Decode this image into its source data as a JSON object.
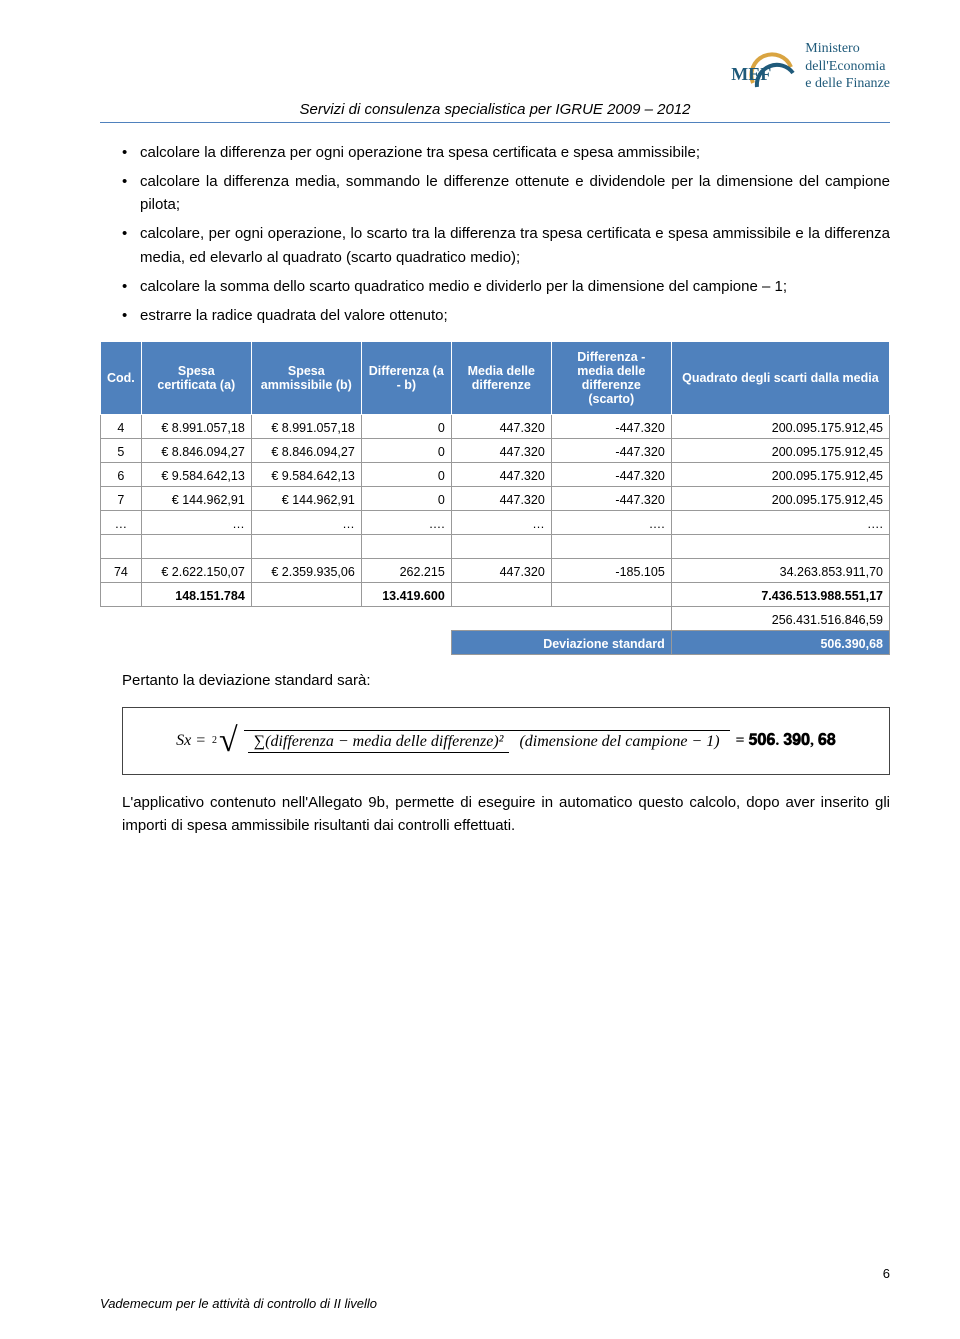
{
  "header": {
    "mef": "MEF",
    "ministry_line1": "Ministero",
    "ministry_line2": "dell'Economia",
    "ministry_line3": "e delle Finanze",
    "doc_title": "Servizi di consulenza specialistica per IGRUE 2009 – 2012"
  },
  "bullets": [
    "calcolare la differenza per ogni operazione tra spesa certificata e spesa ammissibile;",
    "calcolare la differenza media, sommando le differenze ottenute e dividendole per la dimensione del campione pilota;",
    "calcolare, per ogni operazione, lo scarto tra la differenza tra spesa certificata e spesa ammissibile e la differenza media, ed elevarlo al quadrato (scarto quadratico medio);",
    "calcolare la somma dello scarto quadratico medio e dividerlo per la dimensione del campione – 1;",
    "estrarre la radice quadrata del valore ottenuto;"
  ],
  "table": {
    "headers": [
      "Cod.",
      "Spesa certificata (a)",
      "Spesa ammissibile (b)",
      "Differenza (a - b)",
      "Media delle differenze",
      "Differenza - media delle differenze (scarto)",
      "Quadrato degli scarti dalla media"
    ],
    "rows": [
      {
        "cod": "4",
        "a": "€ 8.991.057,18",
        "b": "€ 8.991.057,18",
        "diff": "0",
        "media": "447.320",
        "scarto": "-447.320",
        "quad": "200.095.175.912,45"
      },
      {
        "cod": "5",
        "a": "€ 8.846.094,27",
        "b": "€ 8.846.094,27",
        "diff": "0",
        "media": "447.320",
        "scarto": "-447.320",
        "quad": "200.095.175.912,45"
      },
      {
        "cod": "6",
        "a": "€ 9.584.642,13",
        "b": "€ 9.584.642,13",
        "diff": "0",
        "media": "447.320",
        "scarto": "-447.320",
        "quad": "200.095.175.912,45"
      },
      {
        "cod": "7",
        "a": "€ 144.962,91",
        "b": "€ 144.962,91",
        "diff": "0",
        "media": "447.320",
        "scarto": "-447.320",
        "quad": "200.095.175.912,45"
      },
      {
        "cod": "…",
        "a": "…",
        "b": "…",
        "diff": "….",
        "media": "…",
        "scarto": "….",
        "quad": "…."
      },
      {
        "cod": "74",
        "a": "€ 2.622.150,07",
        "b": "€ 2.359.935,06",
        "diff": "262.215",
        "media": "447.320",
        "scarto": "-185.105",
        "quad": "34.263.853.911,70"
      }
    ],
    "totals": {
      "a_sum": "148.151.784",
      "diff_sum": "13.419.600",
      "quad_sum": "7.436.513.988.551,17",
      "quad_div": "256.431.516.846,59",
      "dev_label": "Deviazione standard",
      "dev_value": "506.390,68"
    }
  },
  "after_table_text": "Pertanto la deviazione standard sarà:",
  "formula": {
    "lhs": "Sx =",
    "root_index": "2",
    "numerator": "∑(differenza − media delle differenze)²",
    "denominator": "(dimensione del campione − 1)",
    "result": "= 𝟓𝟎𝟔. 𝟑𝟗𝟎, 𝟔𝟖"
  },
  "closing_para": "L'applicativo contenuto nell'Allegato 9b, permette di eseguire in automatico questo calcolo, dopo aver inserito gli importi di spesa ammissibile risultanti dai controlli effettuati.",
  "footer": "Vademecum per le attività di controllo di II livello",
  "pagenum": "6",
  "colors": {
    "accent_blue": "#4f81bd",
    "logo_blue": "#1f5a7a",
    "logo_gold": "#d9a441"
  }
}
